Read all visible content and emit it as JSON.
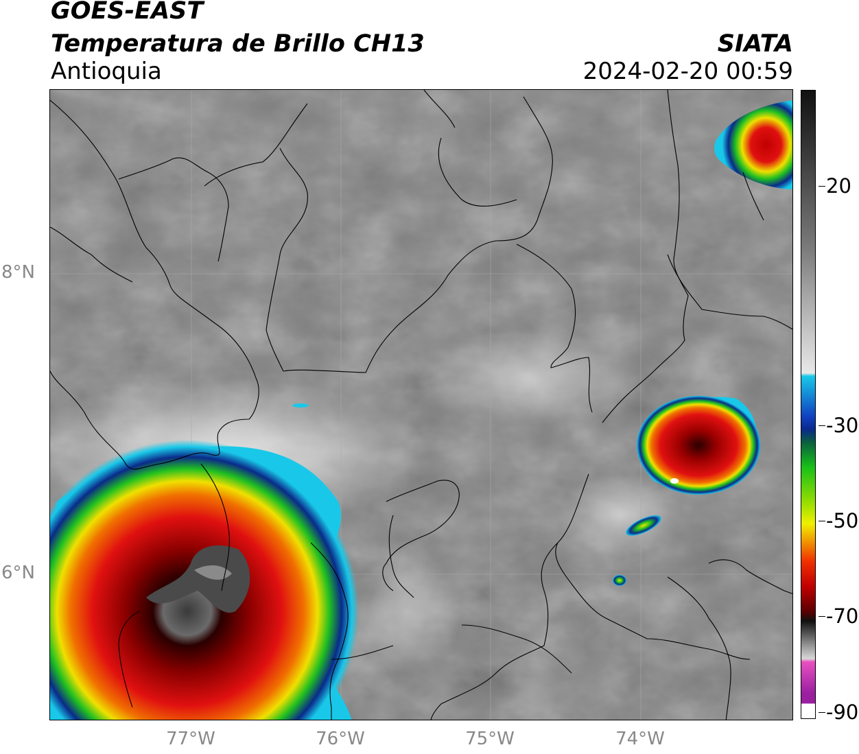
{
  "header": {
    "satellite": "GOES-EAST",
    "product": "Temperatura de Brillo CH13",
    "region": "Antioquia",
    "organization": "SIATA",
    "datetime": "2024-02-20 00:59"
  },
  "map": {
    "extent": {
      "lon_min": -77.93,
      "lon_max": -72.97,
      "lat_min": 5.05,
      "lat_max": 9.22
    },
    "lat_labels": [
      {
        "lat": 8,
        "label": "8°N"
      },
      {
        "lat": 6,
        "label": "6°N"
      }
    ],
    "lon_labels": [
      {
        "lon": -77,
        "label": "77°W"
      },
      {
        "lon": -76,
        "label": "76°W"
      },
      {
        "lon": -75,
        "label": "75°W"
      },
      {
        "lon": -74,
        "label": "74°W"
      }
    ]
  },
  "colorbar": {
    "range": [
      -90,
      40
    ],
    "ticks": [
      {
        "value": 20,
        "label": "20"
      },
      {
        "value": -30,
        "label": "-30"
      },
      {
        "value": -50,
        "label": "-50"
      },
      {
        "value": -70,
        "label": "-70"
      },
      {
        "value": -90,
        "label": "-90"
      }
    ],
    "colors": {
      "warm_top": "#111111",
      "gray_mid": "#8a8a8a",
      "light": "#f2f2f2",
      "cyan": "#19c8e8",
      "blue": "#0a2a8a",
      "green": "#18c018",
      "yellow": "#f0f000",
      "orange": "#f08000",
      "red": "#e01010",
      "dark_red": "#5a0000",
      "black": "#111111",
      "gray_low": "#c8c8c8",
      "pink": "#e850c0",
      "purple": "#9a20a0"
    }
  }
}
